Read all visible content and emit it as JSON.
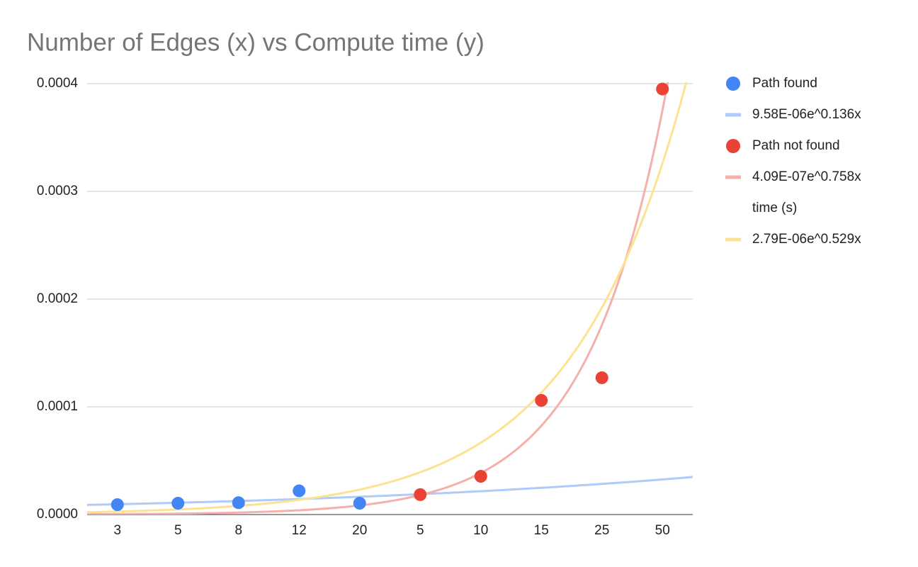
{
  "chart_data": {
    "type": "scatter",
    "title": "Number of Edges (x) vs Compute time (y)",
    "categories": [
      "3",
      "5",
      "8",
      "12",
      "20",
      "5",
      "10",
      "15",
      "25",
      "50"
    ],
    "series": [
      {
        "name": "Path found",
        "color": "#4285f4",
        "values": [
          9.2e-06,
          1.05e-05,
          1.1e-05,
          2.2e-05,
          1.05e-05,
          null,
          null,
          null,
          null,
          null
        ],
        "trendline": {
          "label": "9.58E-06e^0.136x",
          "color": "#aecbfa",
          "coefficient": 9.58e-06,
          "exponent": 0.136
        }
      },
      {
        "name": "Path not found",
        "color": "#ea4335",
        "values": [
          null,
          null,
          null,
          null,
          null,
          1.85e-05,
          3.55e-05,
          0.000106,
          0.000127,
          0.000395
        ],
        "trendline": {
          "label": "4.09E-07e^0.758x",
          "color": "#f4b0aa",
          "coefficient": 4.09e-07,
          "exponent": 0.758
        }
      },
      {
        "name": "time (s)",
        "trendline": {
          "label": "2.79E-06e^0.529x",
          "color": "#fde293",
          "coefficient": 2.79e-06,
          "exponent": 0.529
        }
      }
    ],
    "ylim": [
      0,
      0.0004
    ],
    "yticks": [
      {
        "value": 0,
        "label": "0.0000"
      },
      0.0001,
      0.0002,
      0.0003,
      0.0004
    ],
    "grid": true,
    "legend": "right"
  }
}
